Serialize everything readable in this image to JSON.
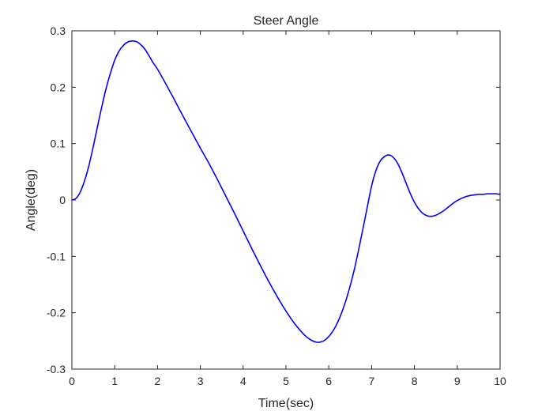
{
  "chart_data": {
    "type": "line",
    "title": "Steer Angle",
    "xlabel": "Time(sec)",
    "ylabel": "Angle(deg)",
    "xlim": [
      0,
      10
    ],
    "ylim": [
      -0.3,
      0.3
    ],
    "xticks": [
      0,
      1,
      2,
      3,
      4,
      5,
      6,
      7,
      8,
      9,
      10
    ],
    "xtick_labels": [
      "0",
      "1",
      "2",
      "3",
      "4",
      "5",
      "6",
      "7",
      "8",
      "9",
      "10"
    ],
    "yticks": [
      -0.3,
      -0.2,
      -0.1,
      0,
      0.1,
      0.2,
      0.3
    ],
    "ytick_labels": [
      "-0.3",
      "-0.2",
      "-0.1",
      "0",
      "0.1",
      "0.2",
      "0.3"
    ],
    "grid": false,
    "series": [
      {
        "color": "#0000ff",
        "x": [
          0,
          0.1,
          0.2,
          0.3,
          0.4,
          0.5,
          0.6,
          0.7,
          0.8,
          0.9,
          1.0,
          1.1,
          1.2,
          1.3,
          1.4,
          1.5,
          1.6,
          1.7,
          1.8,
          1.9,
          2.0,
          2.2,
          2.4,
          2.6,
          2.8,
          3.0,
          3.2,
          3.4,
          3.6,
          3.8,
          4.0,
          4.2,
          4.4,
          4.6,
          4.8,
          5.0,
          5.2,
          5.4,
          5.5,
          5.6,
          5.7,
          5.8,
          5.9,
          6.0,
          6.1,
          6.2,
          6.3,
          6.4,
          6.5,
          6.6,
          6.7,
          6.8,
          6.9,
          7.0,
          7.1,
          7.2,
          7.3,
          7.4,
          7.5,
          7.6,
          7.7,
          7.8,
          7.9,
          8.0,
          8.1,
          8.2,
          8.3,
          8.4,
          8.5,
          8.6,
          8.7,
          8.8,
          8.9,
          9.0,
          9.1,
          9.2,
          9.3,
          9.4,
          9.5,
          9.6,
          9.7,
          9.8,
          9.9,
          10.0
        ],
        "y": [
          0,
          0.003,
          0.015,
          0.035,
          0.062,
          0.095,
          0.131,
          0.166,
          0.198,
          0.225,
          0.248,
          0.264,
          0.274,
          0.28,
          0.282,
          0.281,
          0.276,
          0.268,
          0.256,
          0.243,
          0.232,
          0.205,
          0.177,
          0.148,
          0.12,
          0.092,
          0.065,
          0.036,
          0.006,
          -0.024,
          -0.055,
          -0.086,
          -0.116,
          -0.145,
          -0.172,
          -0.197,
          -0.219,
          -0.237,
          -0.244,
          -0.249,
          -0.252,
          -0.252,
          -0.249,
          -0.242,
          -0.232,
          -0.218,
          -0.2,
          -0.178,
          -0.152,
          -0.122,
          -0.087,
          -0.05,
          -0.012,
          0.025,
          0.052,
          0.069,
          0.077,
          0.08,
          0.076,
          0.066,
          0.05,
          0.031,
          0.012,
          -0.004,
          -0.016,
          -0.024,
          -0.028,
          -0.029,
          -0.027,
          -0.023,
          -0.018,
          -0.012,
          -0.006,
          -0.001,
          0.003,
          0.006,
          0.008,
          0.009,
          0.01,
          0.01,
          0.011,
          0.011,
          0.011,
          0.01
        ]
      }
    ]
  }
}
